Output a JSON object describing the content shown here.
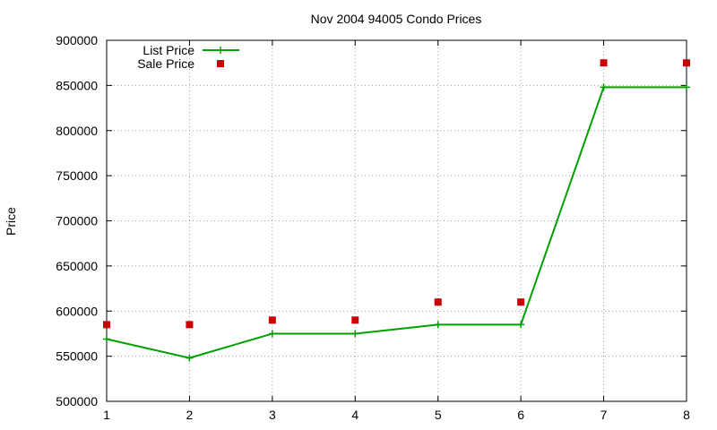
{
  "chart_data": {
    "type": "line",
    "title": "Nov 2004 94005 Condo Prices",
    "xlabel": "",
    "ylabel": "Price",
    "x": [
      1,
      2,
      3,
      4,
      5,
      6,
      7,
      8
    ],
    "xlim": [
      1,
      8
    ],
    "ylim": [
      500000,
      900000
    ],
    "xticks": [
      "1",
      "2",
      "3",
      "4",
      "5",
      "6",
      "7",
      "8"
    ],
    "yticks": [
      "500000",
      "550000",
      "600000",
      "650000",
      "700000",
      "750000",
      "800000",
      "850000",
      "900000"
    ],
    "grid": true,
    "legend_position": "top-left",
    "series": [
      {
        "name": "List Price",
        "style": "line-with-plus-markers",
        "color": "#00a000",
        "values": [
          569000,
          548000,
          575000,
          575000,
          585000,
          585000,
          848000,
          848000
        ]
      },
      {
        "name": "Sale Price",
        "style": "square-markers",
        "color": "#cc0000",
        "values": [
          585000,
          585000,
          590000,
          590000,
          610000,
          610000,
          875000,
          875000
        ]
      }
    ]
  }
}
